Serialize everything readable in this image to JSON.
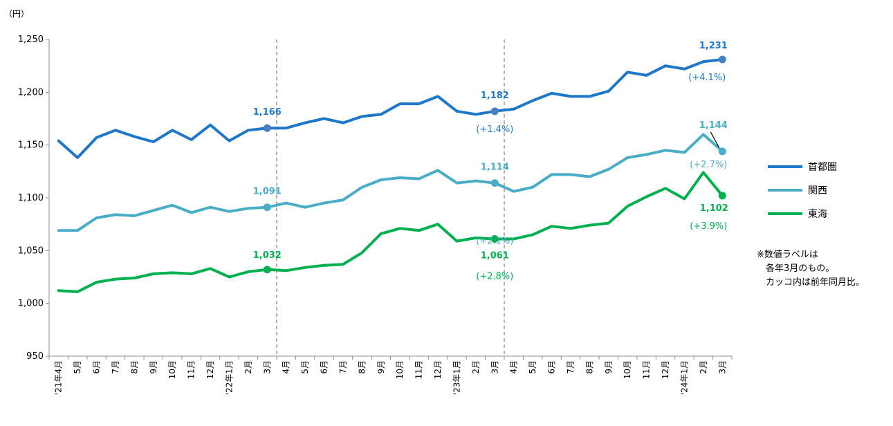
{
  "chart_data": {
    "type": "line",
    "unit_label": "（円）",
    "ylim": [
      950,
      1250
    ],
    "yticks": [
      "950",
      "1,000",
      "1,050",
      "1,100",
      "1,150",
      "1,200",
      "1,250"
    ],
    "ytick_values": [
      950,
      1000,
      1050,
      1100,
      1150,
      1200,
      1250
    ],
    "categories": [
      "'21年4月",
      "5月",
      "6月",
      "7月",
      "8月",
      "9月",
      "10月",
      "11月",
      "12月",
      "'22年1月",
      "2月",
      "3月",
      "4月",
      "5月",
      "6月",
      "7月",
      "8月",
      "9月",
      "10月",
      "11月",
      "12月",
      "'23年1月",
      "2月",
      "3月",
      "4月",
      "5月",
      "6月",
      "7月",
      "8月",
      "9月",
      "10月",
      "11月",
      "12月",
      "'24年1月",
      "2月",
      "3月"
    ],
    "separators_after_index": [
      11,
      23
    ],
    "series": [
      {
        "name": "首都圏",
        "color": "#1f77c8",
        "values": [
          1154,
          1138,
          1157,
          1164,
          1158,
          1153,
          1164,
          1155,
          1169,
          1154,
          1164,
          1166,
          1166,
          1171,
          1175,
          1171,
          1177,
          1179,
          1189,
          1189,
          1196,
          1182,
          1179,
          1182,
          1184,
          1192,
          1199,
          1196,
          1196,
          1201,
          1219,
          1216,
          1225,
          1222,
          1229,
          1231
        ],
        "labels": [
          {
            "index": 11,
            "value": "1,166",
            "change": ""
          },
          {
            "index": 23,
            "value": "1,182",
            "change": "(+1.4%)"
          },
          {
            "index": 35,
            "value": "1,231",
            "change": "(+4.1%)"
          }
        ]
      },
      {
        "name": "関西",
        "color": "#4bacc6",
        "values": [
          1069,
          1069,
          1081,
          1084,
          1083,
          1088,
          1093,
          1086,
          1091,
          1087,
          1090,
          1091,
          1095,
          1091,
          1095,
          1098,
          1110,
          1117,
          1119,
          1118,
          1126,
          1114,
          1116,
          1114,
          1106,
          1110,
          1122,
          1122,
          1120,
          1127,
          1138,
          1141,
          1145,
          1143,
          1160,
          1144
        ],
        "labels": [
          {
            "index": 11,
            "value": "1,091",
            "change": ""
          },
          {
            "index": 23,
            "value": "1,114",
            "change": "(+2.1%)"
          },
          {
            "index": 35,
            "value": "1,144",
            "change": "(+2.7%)"
          }
        ]
      },
      {
        "name": "東海",
        "color": "#00b050",
        "values": [
          1012,
          1011,
          1020,
          1023,
          1024,
          1028,
          1029,
          1028,
          1033,
          1025,
          1030,
          1032,
          1031,
          1034,
          1036,
          1037,
          1048,
          1066,
          1071,
          1069,
          1075,
          1059,
          1062,
          1061,
          1061,
          1065,
          1073,
          1071,
          1074,
          1076,
          1092,
          1101,
          1109,
          1099,
          1124,
          1102
        ],
        "labels": [
          {
            "index": 11,
            "value": "1,032",
            "change": ""
          },
          {
            "index": 23,
            "value": "1,061",
            "change": "(+2.8%)"
          },
          {
            "index": 35,
            "value": "1,102",
            "change": "(+3.9%)"
          }
        ]
      }
    ],
    "legend_position": "right",
    "grid": false
  },
  "note": [
    "※数値ラベルは",
    "　各年3月のもの。",
    "　カッコ内は前年同月比。"
  ]
}
